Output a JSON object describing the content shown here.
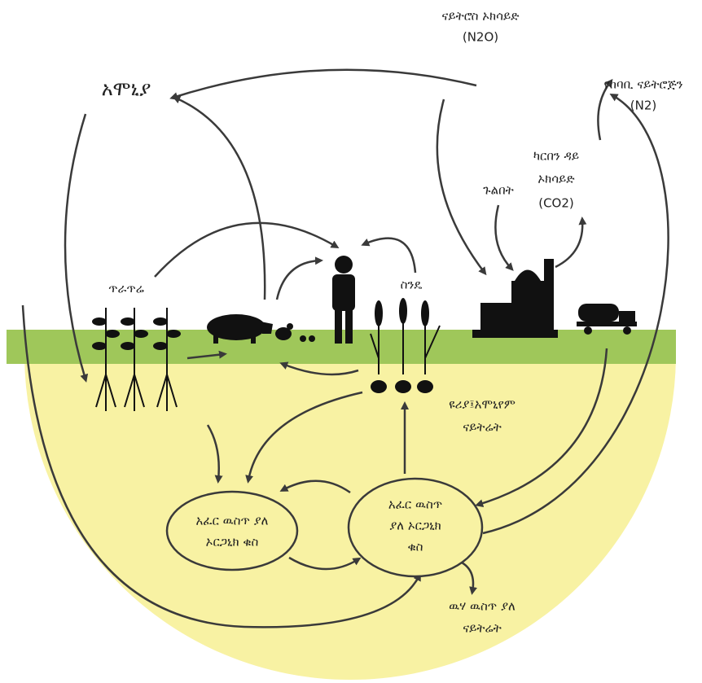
{
  "labels": {
    "nitrous_oxide": [
      "ናይትሮስ ኦክሳይድ",
      "(N2O)"
    ],
    "ammonia": "አሞኒያ",
    "atmospheric_nitrogen": [
      "የከባቢ ናይትሮጅን",
      "(N2)"
    ],
    "carbon_dioxide": [
      "ካርበን ዳይ",
      "ኦክሳይድ",
      "(CO2)"
    ],
    "energy": "ጉልበት",
    "legumes": "ጥራጥሬ",
    "wheat": "ስንዴ",
    "fertilizer": [
      "ዩሪያ፤አሞኒየም",
      "ናይትሬት"
    ],
    "soil_organic_matter_left": [
      "አፈር ዉስጥ ያለ",
      "ኦርጋኒክ ቁስ"
    ],
    "soil_organic_matter_right": [
      "አፈር ዉስጥ",
      "ያለ ኦርጋኒክ",
      "ቁስ"
    ],
    "water_nitrate": [
      "ዉሃ ዉስጥ ያለ",
      "ናይትሬት"
    ]
  }
}
